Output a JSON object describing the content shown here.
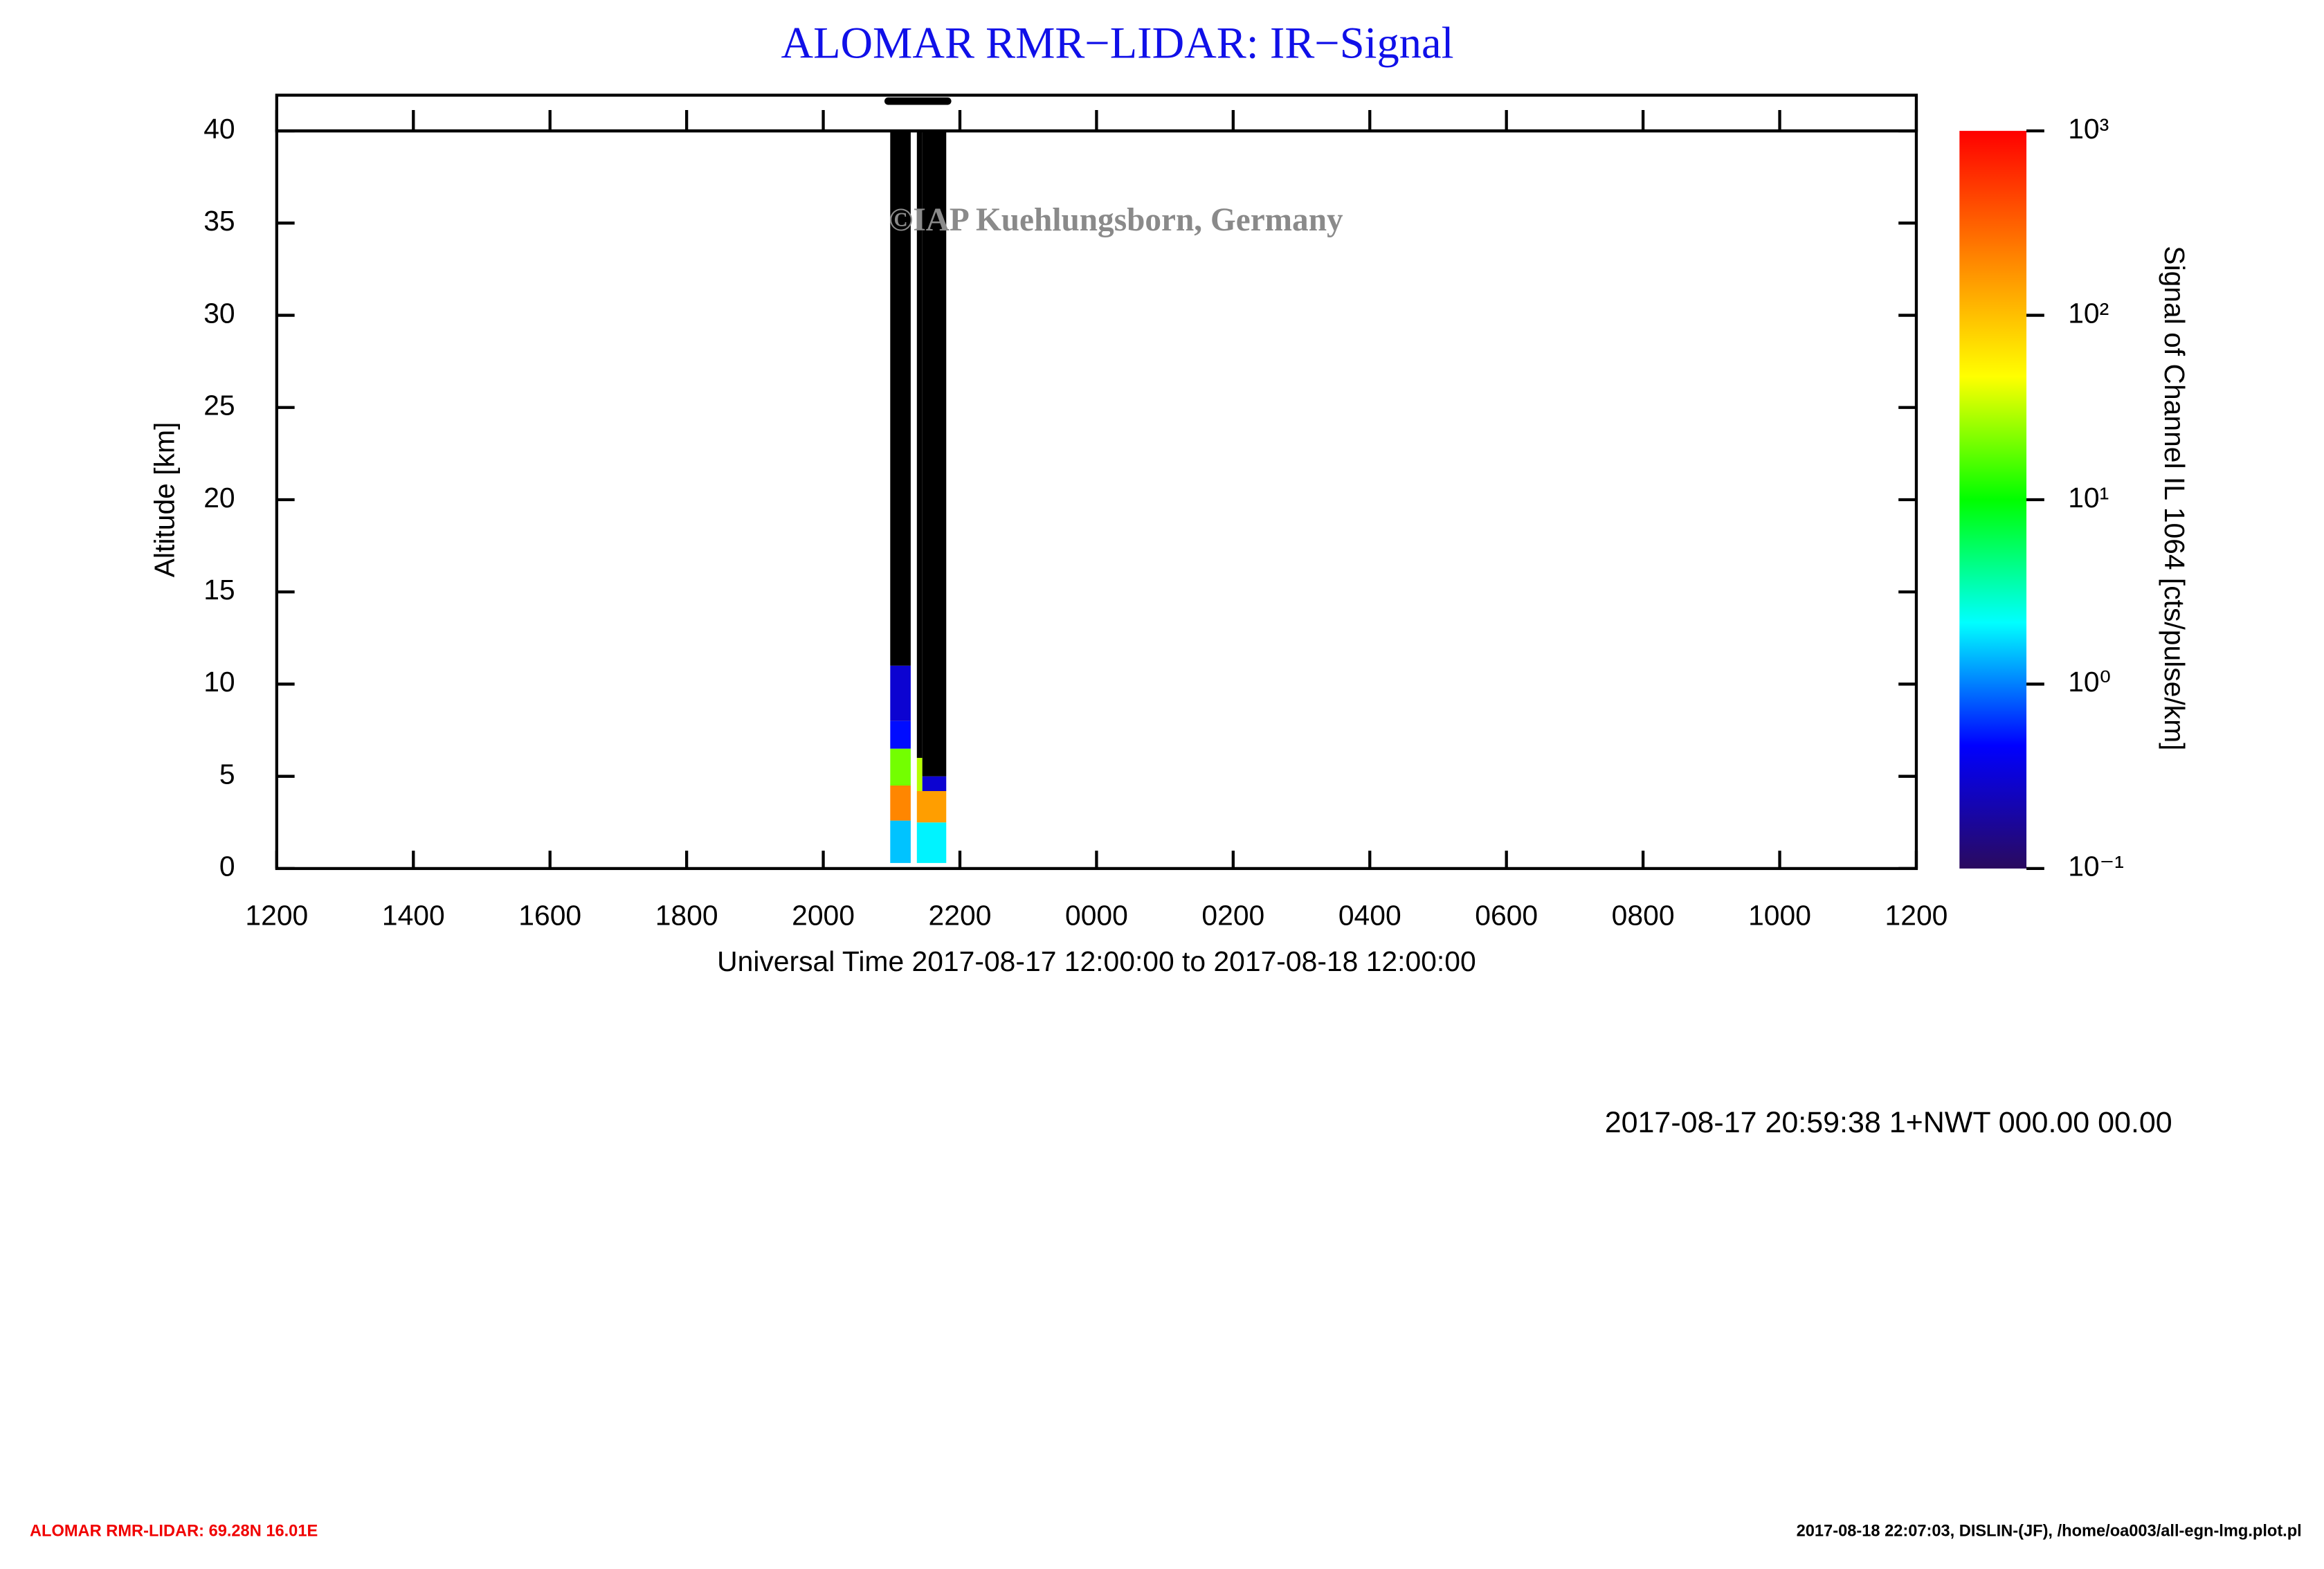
{
  "chart_data": {
    "type": "heatmap",
    "title": "ALOMAR RMR−LIDAR: IR−Signal",
    "watermark": "©IAP Kuehlungsborn, Germany",
    "x_label": "Universal Time 2017-08-17 12:00:00 to 2017-08-18 12:00:00",
    "y_label": "Altitude [km]",
    "colorbar_label": "Signal of Channel IL 1064 [cts/pulse/km]",
    "xlim": [
      12,
      36
    ],
    "xticks": [
      {
        "value": 12,
        "label": "1200"
      },
      {
        "value": 14,
        "label": "1400"
      },
      {
        "value": 16,
        "label": "1600"
      },
      {
        "value": 18,
        "label": "1800"
      },
      {
        "value": 20,
        "label": "2000"
      },
      {
        "value": 22,
        "label": "2200"
      },
      {
        "value": 24,
        "label": "0000"
      },
      {
        "value": 26,
        "label": "0200"
      },
      {
        "value": 28,
        "label": "0400"
      },
      {
        "value": 30,
        "label": "0600"
      },
      {
        "value": 32,
        "label": "0800"
      },
      {
        "value": 34,
        "label": "1000"
      },
      {
        "value": 36,
        "label": "1200"
      }
    ],
    "ylim": [
      0,
      40
    ],
    "yticks": [
      0,
      5,
      10,
      15,
      20,
      25,
      30,
      35,
      40
    ],
    "clim": [
      0.1,
      1000
    ],
    "cscale": "log",
    "cticks": [
      {
        "value": 0.1,
        "label": "10⁻¹"
      },
      {
        "value": 1,
        "label": "10⁰"
      },
      {
        "value": 10,
        "label": "10¹"
      },
      {
        "value": 100,
        "label": "10²"
      },
      {
        "value": 1000,
        "label": "10³"
      }
    ],
    "colormap": [
      "#2a0a5e",
      "#0000ff",
      "#00ffff",
      "#00ff00",
      "#ffff00",
      "#ff8000",
      "#ff0000"
    ],
    "no_data_color": "#000000",
    "coverage": [
      20.95,
      21.82
    ],
    "cells": [
      {
        "x": [
          20.98,
          21.28
        ],
        "y": [
          0.3,
          2.6
        ],
        "value": 1.5
      },
      {
        "x": [
          20.98,
          21.28
        ],
        "y": [
          2.6,
          4.5
        ],
        "value": 200
      },
      {
        "x": [
          20.98,
          21.28
        ],
        "y": [
          4.5,
          6.5
        ],
        "value": 20
      },
      {
        "x": [
          20.98,
          21.28
        ],
        "y": [
          6.5,
          8
        ],
        "value": 0.5
      },
      {
        "x": [
          20.98,
          21.28
        ],
        "y": [
          8,
          11
        ],
        "value": 0.3
      },
      {
        "x": [
          20.98,
          21.28
        ],
        "y": [
          11,
          40
        ],
        "value": null
      },
      {
        "x": [
          21.37,
          21.8
        ],
        "y": [
          0.3,
          2.5
        ],
        "value": 2
      },
      {
        "x": [
          21.37,
          21.8
        ],
        "y": [
          2.5,
          4.2
        ],
        "value": 150
      },
      {
        "x": [
          21.37,
          21.45
        ],
        "y": [
          4.2,
          6
        ],
        "value": 30
      },
      {
        "x": [
          21.45,
          21.8
        ],
        "y": [
          4.2,
          5
        ],
        "value": 0.3
      },
      {
        "x": [
          21.45,
          21.8
        ],
        "y": [
          5,
          40
        ],
        "value": null
      },
      {
        "x": [
          21.37,
          21.45
        ],
        "y": [
          6,
          40
        ],
        "value": null
      }
    ],
    "run_info": "2017-08-17 20:59:38 1+NWT 000.00 00.00",
    "footer_left": "ALOMAR RMR-LIDAR: 69.28N 16.01E",
    "footer_right": "2017-08-18 22:07:03, DISLIN-(JF), /home/oa003/all-egn-lmg.plot.pl"
  }
}
